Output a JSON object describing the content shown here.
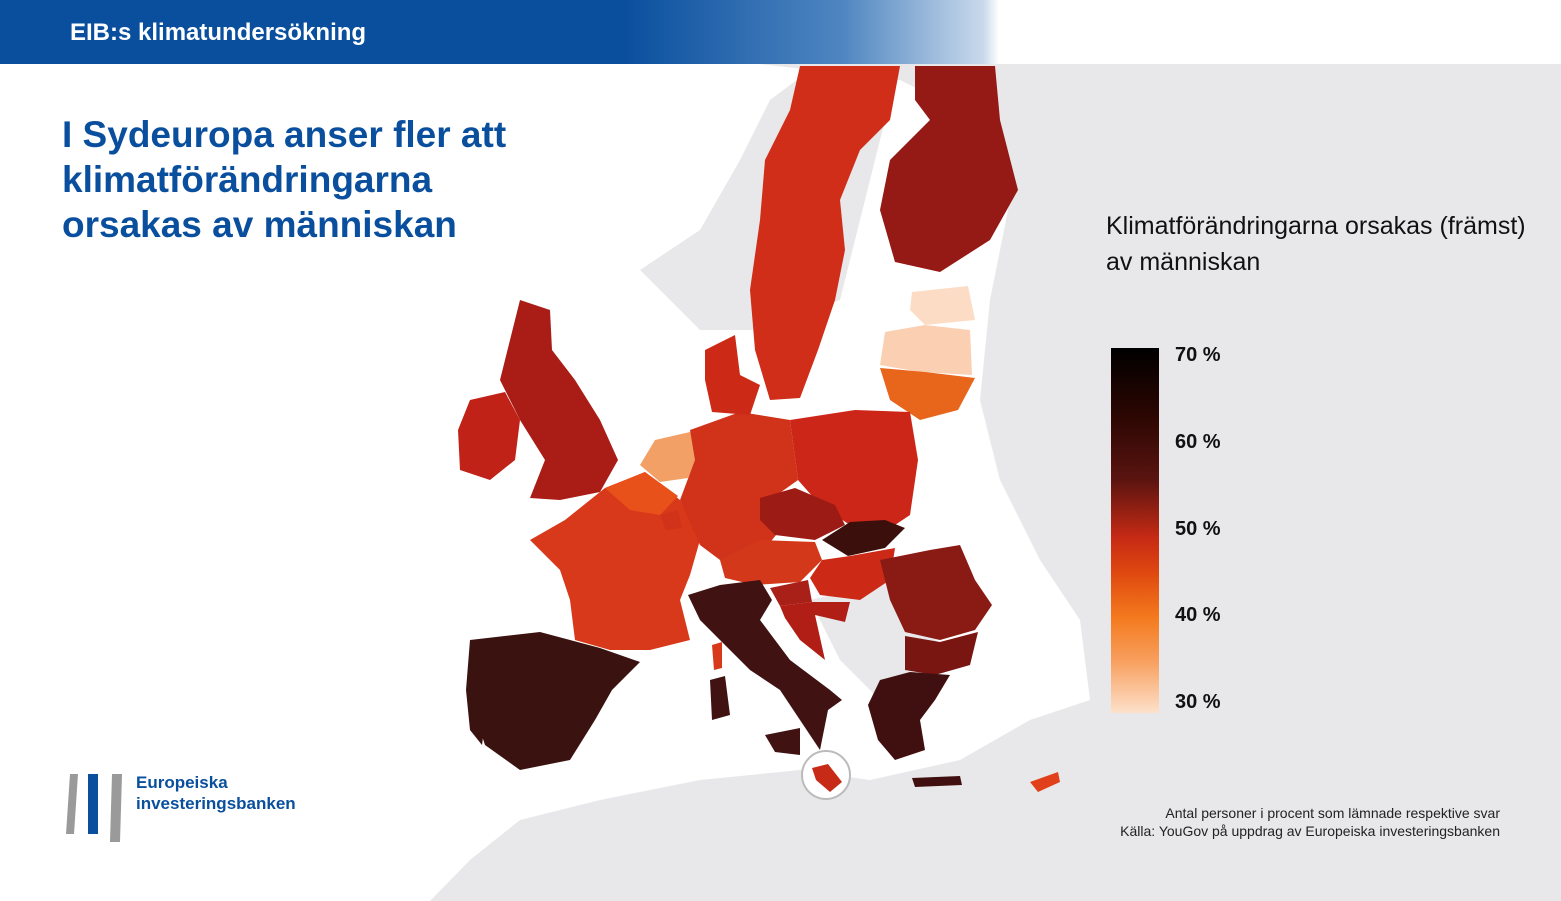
{
  "header": {
    "title": "EIB:s klimatundersökning"
  },
  "headline": "I Sydeuropa anser fler att klimatförändringarna orsakas av människan",
  "legend": {
    "title": "Klimatförändringarna orsakas (främst) av människan",
    "ticks": [
      "70 %",
      "60 %",
      "50 %",
      "40 %",
      "30 %"
    ],
    "scale_min": 30,
    "scale_max": 70
  },
  "logo": {
    "line1": "Europeiska",
    "line2": "investeringsbanken"
  },
  "source": {
    "line1": "Antal personer i procent som lämnade respektive svar",
    "line2": "Källa: YouGov på uppdrag av Europeiska investeringsbanken"
  },
  "colors": {
    "brand_blue": "#0a4f9e",
    "background_land": "#e8e8ea",
    "darkest": "#3a0f0c",
    "dark": "#8e1a14",
    "mid": "#cc2a17",
    "orange": "#e8601a",
    "light": "#f5a466",
    "lightest": "#fcdcc6"
  },
  "regions": [
    {
      "name": "Spain",
      "fill": "#3a1210"
    },
    {
      "name": "Portugal",
      "fill": "#3a1210"
    },
    {
      "name": "France",
      "fill": "#d8391a"
    },
    {
      "name": "United Kingdom",
      "fill": "#aa1c16"
    },
    {
      "name": "Ireland",
      "fill": "#c02217"
    },
    {
      "name": "Netherlands",
      "fill": "#f2a066"
    },
    {
      "name": "Belgium",
      "fill": "#e8521a"
    },
    {
      "name": "Germany",
      "fill": "#d0321a"
    },
    {
      "name": "Denmark",
      "fill": "#cc2a17"
    },
    {
      "name": "Sweden",
      "fill": "#d02e19"
    },
    {
      "name": "Finland",
      "fill": "#951914"
    },
    {
      "name": "Estonia",
      "fill": "#fddcc6"
    },
    {
      "name": "Latvia",
      "fill": "#fbd0b2"
    },
    {
      "name": "Lithuania",
      "fill": "#e8651c"
    },
    {
      "name": "Poland",
      "fill": "#cc2618"
    },
    {
      "name": "Czechia",
      "fill": "#9c1c15"
    },
    {
      "name": "Slovakia",
      "fill": "#3a0f0c"
    },
    {
      "name": "Austria",
      "fill": "#d4381a"
    },
    {
      "name": "Hungary",
      "fill": "#cc2a17"
    },
    {
      "name": "Slovenia",
      "fill": "#a82018"
    },
    {
      "name": "Croatia",
      "fill": "#b01e16"
    },
    {
      "name": "Romania",
      "fill": "#8a1a14"
    },
    {
      "name": "Bulgaria",
      "fill": "#7a1612"
    },
    {
      "name": "Greece",
      "fill": "#401010"
    },
    {
      "name": "Italy",
      "fill": "#401212"
    },
    {
      "name": "Malta",
      "fill": "#c82a18"
    },
    {
      "name": "Cyprus",
      "fill": "#e0401a"
    },
    {
      "name": "Luxembourg",
      "fill": "#d0321a"
    }
  ]
}
